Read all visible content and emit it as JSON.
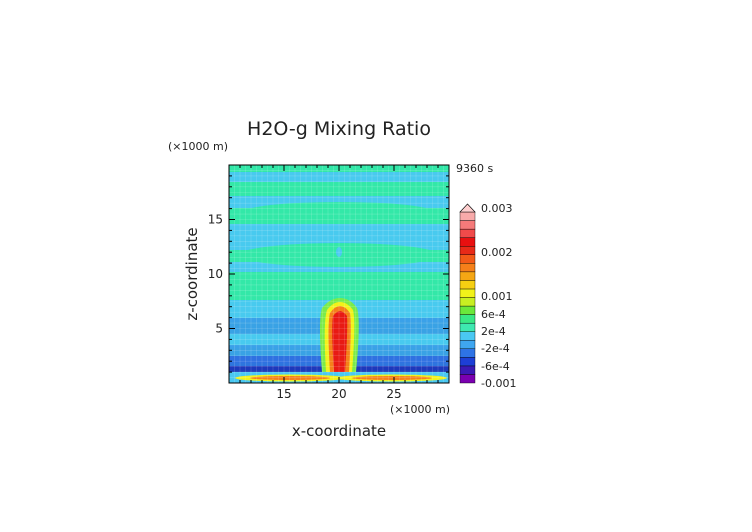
{
  "chart_data": {
    "type": "heatmap",
    "title": "H2O-g Mixing Ratio",
    "xlabel": "x-coordinate",
    "ylabel": "z-coordinate",
    "x_unit": "(×1000 m)",
    "y_unit": "(×1000 m)",
    "time_label": "9360 s",
    "xlim": [
      10,
      30
    ],
    "ylim": [
      0,
      20
    ],
    "x_ticks": [
      {
        "value": 15,
        "label": "15"
      },
      {
        "value": 20,
        "label": "20"
      },
      {
        "value": 25,
        "label": "25"
      }
    ],
    "y_ticks": [
      {
        "value": 5,
        "label": "5"
      },
      {
        "value": 10,
        "label": "10"
      },
      {
        "value": 15,
        "label": "15"
      }
    ],
    "colorbar": {
      "labels": [
        "0.003",
        "0.002",
        "0.001",
        "6e-4",
        "2e-4",
        "-2e-4",
        "-6e-4",
        "-0.001"
      ],
      "colors": [
        "#7a00b0",
        "#3a1ab5",
        "#1d3fd6",
        "#2e73e6",
        "#3fa6f0",
        "#4ac8f2",
        "#3ee8b0",
        "#39e884",
        "#6ae83a",
        "#c8ef22",
        "#f2f21a",
        "#f6cf12",
        "#f5a614",
        "#f5801a",
        "#f25a18",
        "#e82a18",
        "#e81010",
        "#f04a4a",
        "#f57a7a",
        "#f8aaaa"
      ],
      "top_triangle_color": "#ffd0d0"
    },
    "grid": true
  }
}
